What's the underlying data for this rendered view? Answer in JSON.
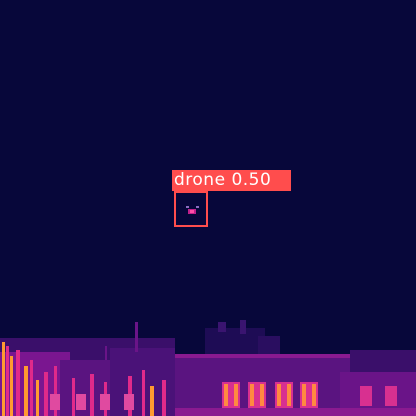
{
  "detections": [
    {
      "class_label": "drone",
      "confidence": "0.50",
      "box_color": "#ff4d4d"
    }
  ],
  "palette": {
    "sky": "#07073a",
    "hot": "#ffb020",
    "warm": "#d0209a",
    "mid": "#6a1080"
  }
}
